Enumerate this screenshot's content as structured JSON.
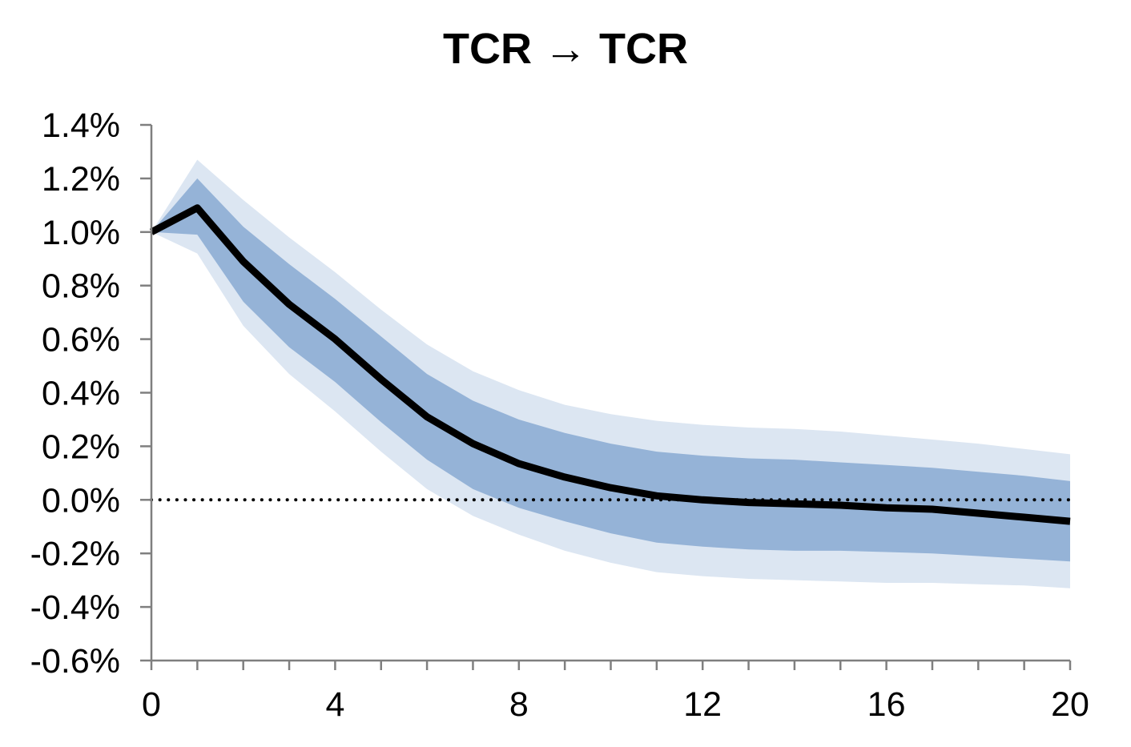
{
  "chart_data": {
    "type": "area",
    "title": "TCR → TCR",
    "xlabel": "",
    "ylabel": "",
    "x": [
      0,
      1,
      2,
      3,
      4,
      5,
      6,
      7,
      8,
      9,
      10,
      11,
      12,
      13,
      14,
      15,
      16,
      17,
      18,
      19,
      20
    ],
    "xlim": [
      0,
      20
    ],
    "ylim": [
      -0.6,
      1.4
    ],
    "x_ticks": [
      0,
      4,
      8,
      12,
      16,
      20
    ],
    "x_tick_labels": [
      "0",
      "4",
      "8",
      "12",
      "16",
      "20"
    ],
    "y_ticks": [
      1.4,
      1.2,
      1.0,
      0.8,
      0.6,
      0.4,
      0.2,
      0.0,
      -0.2,
      -0.4,
      -0.6
    ],
    "y_tick_labels": [
      "1.4%",
      "1.2%",
      "1.0%",
      "0.8%",
      "0.6%",
      "0.4%",
      "0.2%",
      "0.0%",
      "-0.2%",
      "-0.4%",
      "-0.6%"
    ],
    "grid": false,
    "zero_line": "dotted",
    "series": [
      {
        "role": "median",
        "color": "#000000",
        "values": [
          1.0,
          1.09,
          0.89,
          0.73,
          0.6,
          0.45,
          0.31,
          0.21,
          0.135,
          0.085,
          0.045,
          0.015,
          0.0,
          -0.01,
          -0.015,
          -0.02,
          -0.03,
          -0.035,
          -0.05,
          -0.065,
          -0.08
        ]
      },
      {
        "role": "inner band",
        "color": "#95b3d7",
        "upper": [
          1.0,
          1.2,
          1.02,
          0.88,
          0.75,
          0.61,
          0.47,
          0.37,
          0.3,
          0.25,
          0.21,
          0.18,
          0.165,
          0.155,
          0.15,
          0.14,
          0.13,
          0.12,
          0.105,
          0.09,
          0.07
        ],
        "lower": [
          1.0,
          0.99,
          0.74,
          0.57,
          0.44,
          0.29,
          0.15,
          0.04,
          -0.03,
          -0.08,
          -0.125,
          -0.16,
          -0.175,
          -0.185,
          -0.19,
          -0.19,
          -0.195,
          -0.2,
          -0.21,
          -0.22,
          -0.23
        ]
      },
      {
        "role": "outer band",
        "color": "#dce6f2",
        "upper": [
          1.0,
          1.27,
          1.12,
          0.98,
          0.85,
          0.71,
          0.58,
          0.48,
          0.41,
          0.355,
          0.32,
          0.295,
          0.28,
          0.27,
          0.265,
          0.255,
          0.24,
          0.225,
          0.21,
          0.19,
          0.17
        ],
        "lower": [
          1.0,
          0.92,
          0.65,
          0.47,
          0.33,
          0.18,
          0.04,
          -0.06,
          -0.13,
          -0.19,
          -0.235,
          -0.27,
          -0.285,
          -0.295,
          -0.3,
          -0.305,
          -0.31,
          -0.31,
          -0.315,
          -0.32,
          -0.33
        ]
      }
    ]
  }
}
